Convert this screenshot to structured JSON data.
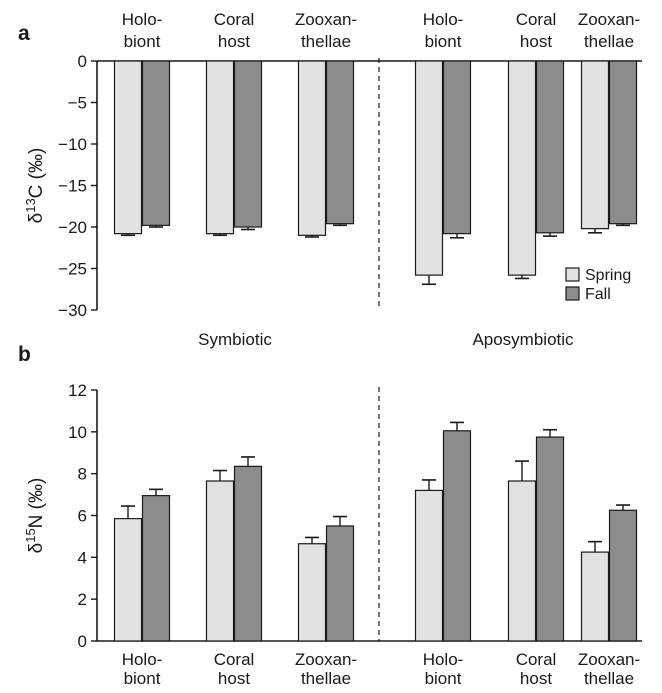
{
  "chart_data": [
    {
      "panel": "a",
      "type": "bar",
      "ylabel": "δ13C (‰)",
      "ylim": [
        -30,
        0
      ],
      "yticks": [
        0,
        -5,
        -10,
        -15,
        -20,
        -25,
        -30
      ],
      "groups": [
        "Symbiotic",
        "Aposymbiotic"
      ],
      "categories": [
        "Holo-\nbiont",
        "Coral\nhost",
        "Zooxan-\nthellae"
      ],
      "category_axis_position": "top",
      "legend": {
        "placement": "bottom-right",
        "entries": [
          "Spring",
          "Fall"
        ]
      },
      "series": [
        {
          "name": "Spring",
          "color": "#e2e2e2",
          "values": [
            [
              -20.8,
              -20.8,
              -21.0
            ],
            [
              -25.8,
              -25.8,
              -20.2
            ]
          ],
          "errors": [
            [
              0.2,
              0.2,
              0.2
            ],
            [
              1.1,
              0.4,
              0.5
            ]
          ]
        },
        {
          "name": "Fall",
          "color": "#8c8c8c",
          "values": [
            [
              -19.8,
              -20.0,
              -19.6
            ],
            [
              -20.8,
              -20.7,
              -19.6
            ]
          ],
          "errors": [
            [
              0.2,
              0.3,
              0.2
            ],
            [
              0.5,
              0.4,
              0.2
            ]
          ]
        }
      ]
    },
    {
      "panel": "b",
      "type": "bar",
      "ylabel": "δ15N (‰)",
      "ylim": [
        0,
        12
      ],
      "yticks": [
        0,
        2,
        4,
        6,
        8,
        10,
        12
      ],
      "groups": [
        "Symbiotic",
        "Aposymbiotic"
      ],
      "categories": [
        "Holo-\nbiont",
        "Coral\nhost",
        "Zooxan-\nthellae"
      ],
      "category_axis_position": "bottom",
      "series": [
        {
          "name": "Spring",
          "color": "#e2e2e2",
          "values": [
            [
              5.85,
              7.65,
              4.65
            ],
            [
              7.2,
              7.65,
              4.25
            ]
          ],
          "errors": [
            [
              0.6,
              0.5,
              0.3
            ],
            [
              0.5,
              0.95,
              0.5
            ]
          ]
        },
        {
          "name": "Fall",
          "color": "#8c8c8c",
          "values": [
            [
              6.95,
              8.35,
              5.5
            ],
            [
              10.05,
              9.75,
              6.25
            ]
          ],
          "errors": [
            [
              0.3,
              0.45,
              0.45
            ],
            [
              0.4,
              0.35,
              0.25
            ]
          ]
        }
      ]
    }
  ]
}
